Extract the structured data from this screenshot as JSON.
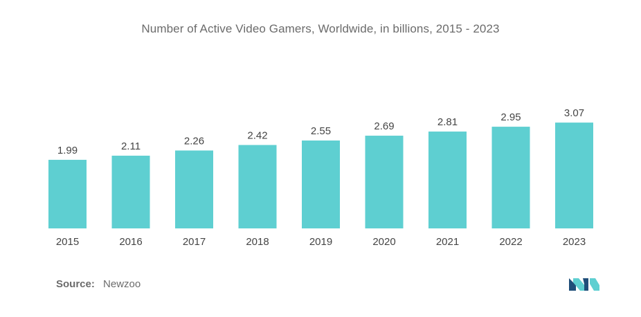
{
  "chart_data": {
    "type": "bar",
    "title": "Number of Active Video Gamers, Worldwide, in billions, 2015 - 2023",
    "categories": [
      "2015",
      "2016",
      "2017",
      "2018",
      "2019",
      "2020",
      "2021",
      "2022",
      "2023"
    ],
    "values": [
      1.99,
      2.11,
      2.26,
      2.42,
      2.55,
      2.69,
      2.81,
      2.95,
      3.07
    ],
    "value_labels": [
      "1.99",
      "2.11",
      "2.26",
      "2.42",
      "2.55",
      "2.69",
      "2.81",
      "2.95",
      "3.07"
    ],
    "bar_color": "#5ecfd1",
    "grid": false,
    "legend": "none"
  },
  "source": {
    "label": "Source:",
    "value": "Newzoo"
  },
  "colors": {
    "title_text": "#6b6b6b",
    "label_text": "#444444",
    "logo_dark": "#1f4e79",
    "logo_light": "#5ecfd1"
  },
  "logo": {
    "icon": "mordor-intelligence-logo-icon"
  }
}
